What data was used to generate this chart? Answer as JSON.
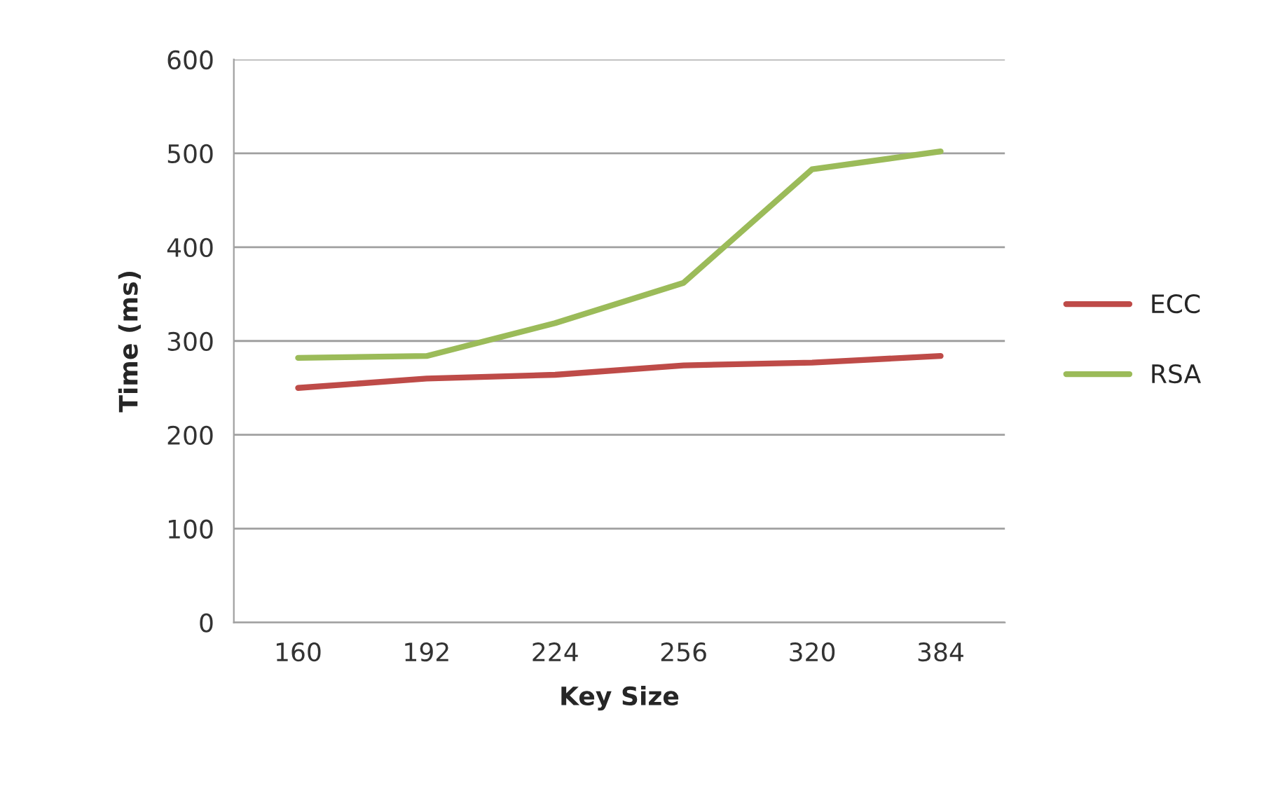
{
  "chart_data": {
    "type": "line",
    "xlabel": "Key Size",
    "ylabel": "Time (ms)",
    "categories": [
      "160",
      "192",
      "224",
      "256",
      "320",
      "384"
    ],
    "series": [
      {
        "name": "ECC",
        "color": "#be4b48",
        "values": [
          250,
          260,
          264,
          274,
          277,
          284
        ]
      },
      {
        "name": "RSA",
        "color": "#9bbb59",
        "values": [
          282,
          284,
          319,
          362,
          483,
          502
        ]
      }
    ],
    "ylim": [
      0,
      600
    ],
    "yticks": [
      0,
      100,
      200,
      300,
      400,
      500,
      600
    ],
    "grid": "y",
    "legend": "right"
  }
}
